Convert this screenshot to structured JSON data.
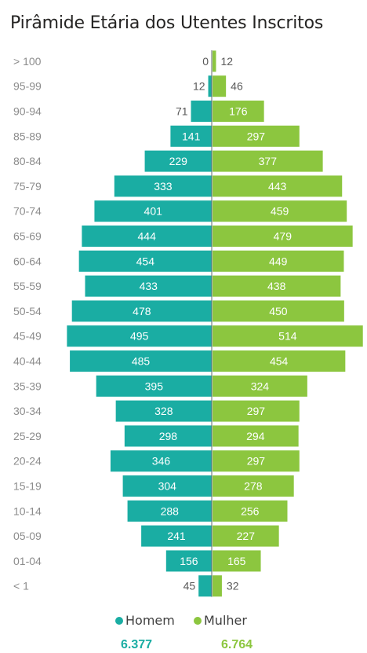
{
  "title": "Pirâmide Etária dos Utentes Inscritos",
  "colors": {
    "male": "#1aada3",
    "female": "#8cc63f",
    "label_dark": "#ffffff",
    "label_light": "#595959",
    "axis_text": "#8c8c8c"
  },
  "chart_data": {
    "type": "bar",
    "orientation": "horizontal-population-pyramid",
    "categories": [
      "> 100",
      "95-99",
      "90-94",
      "85-89",
      "80-84",
      "75-79",
      "70-74",
      "65-69",
      "60-64",
      "55-59",
      "50-54",
      "45-49",
      "40-44",
      "35-39",
      "30-34",
      "25-29",
      "20-24",
      "15-19",
      "10-14",
      "05-09",
      "01-04",
      "< 1"
    ],
    "series": [
      {
        "name": "Homem",
        "values": [
          0,
          12,
          71,
          141,
          229,
          333,
          401,
          444,
          454,
          433,
          478,
          495,
          485,
          395,
          328,
          298,
          346,
          304,
          288,
          241,
          156,
          45
        ]
      },
      {
        "name": "Mulher",
        "values": [
          12,
          46,
          176,
          297,
          377,
          443,
          459,
          479,
          449,
          438,
          450,
          514,
          454,
          324,
          297,
          294,
          297,
          278,
          256,
          227,
          165,
          32
        ]
      }
    ],
    "legend_position": "bottom-center"
  },
  "legend": {
    "male_label": "Homem",
    "female_label": "Mulher",
    "male_total": "6.377",
    "female_total": "6.764"
  }
}
